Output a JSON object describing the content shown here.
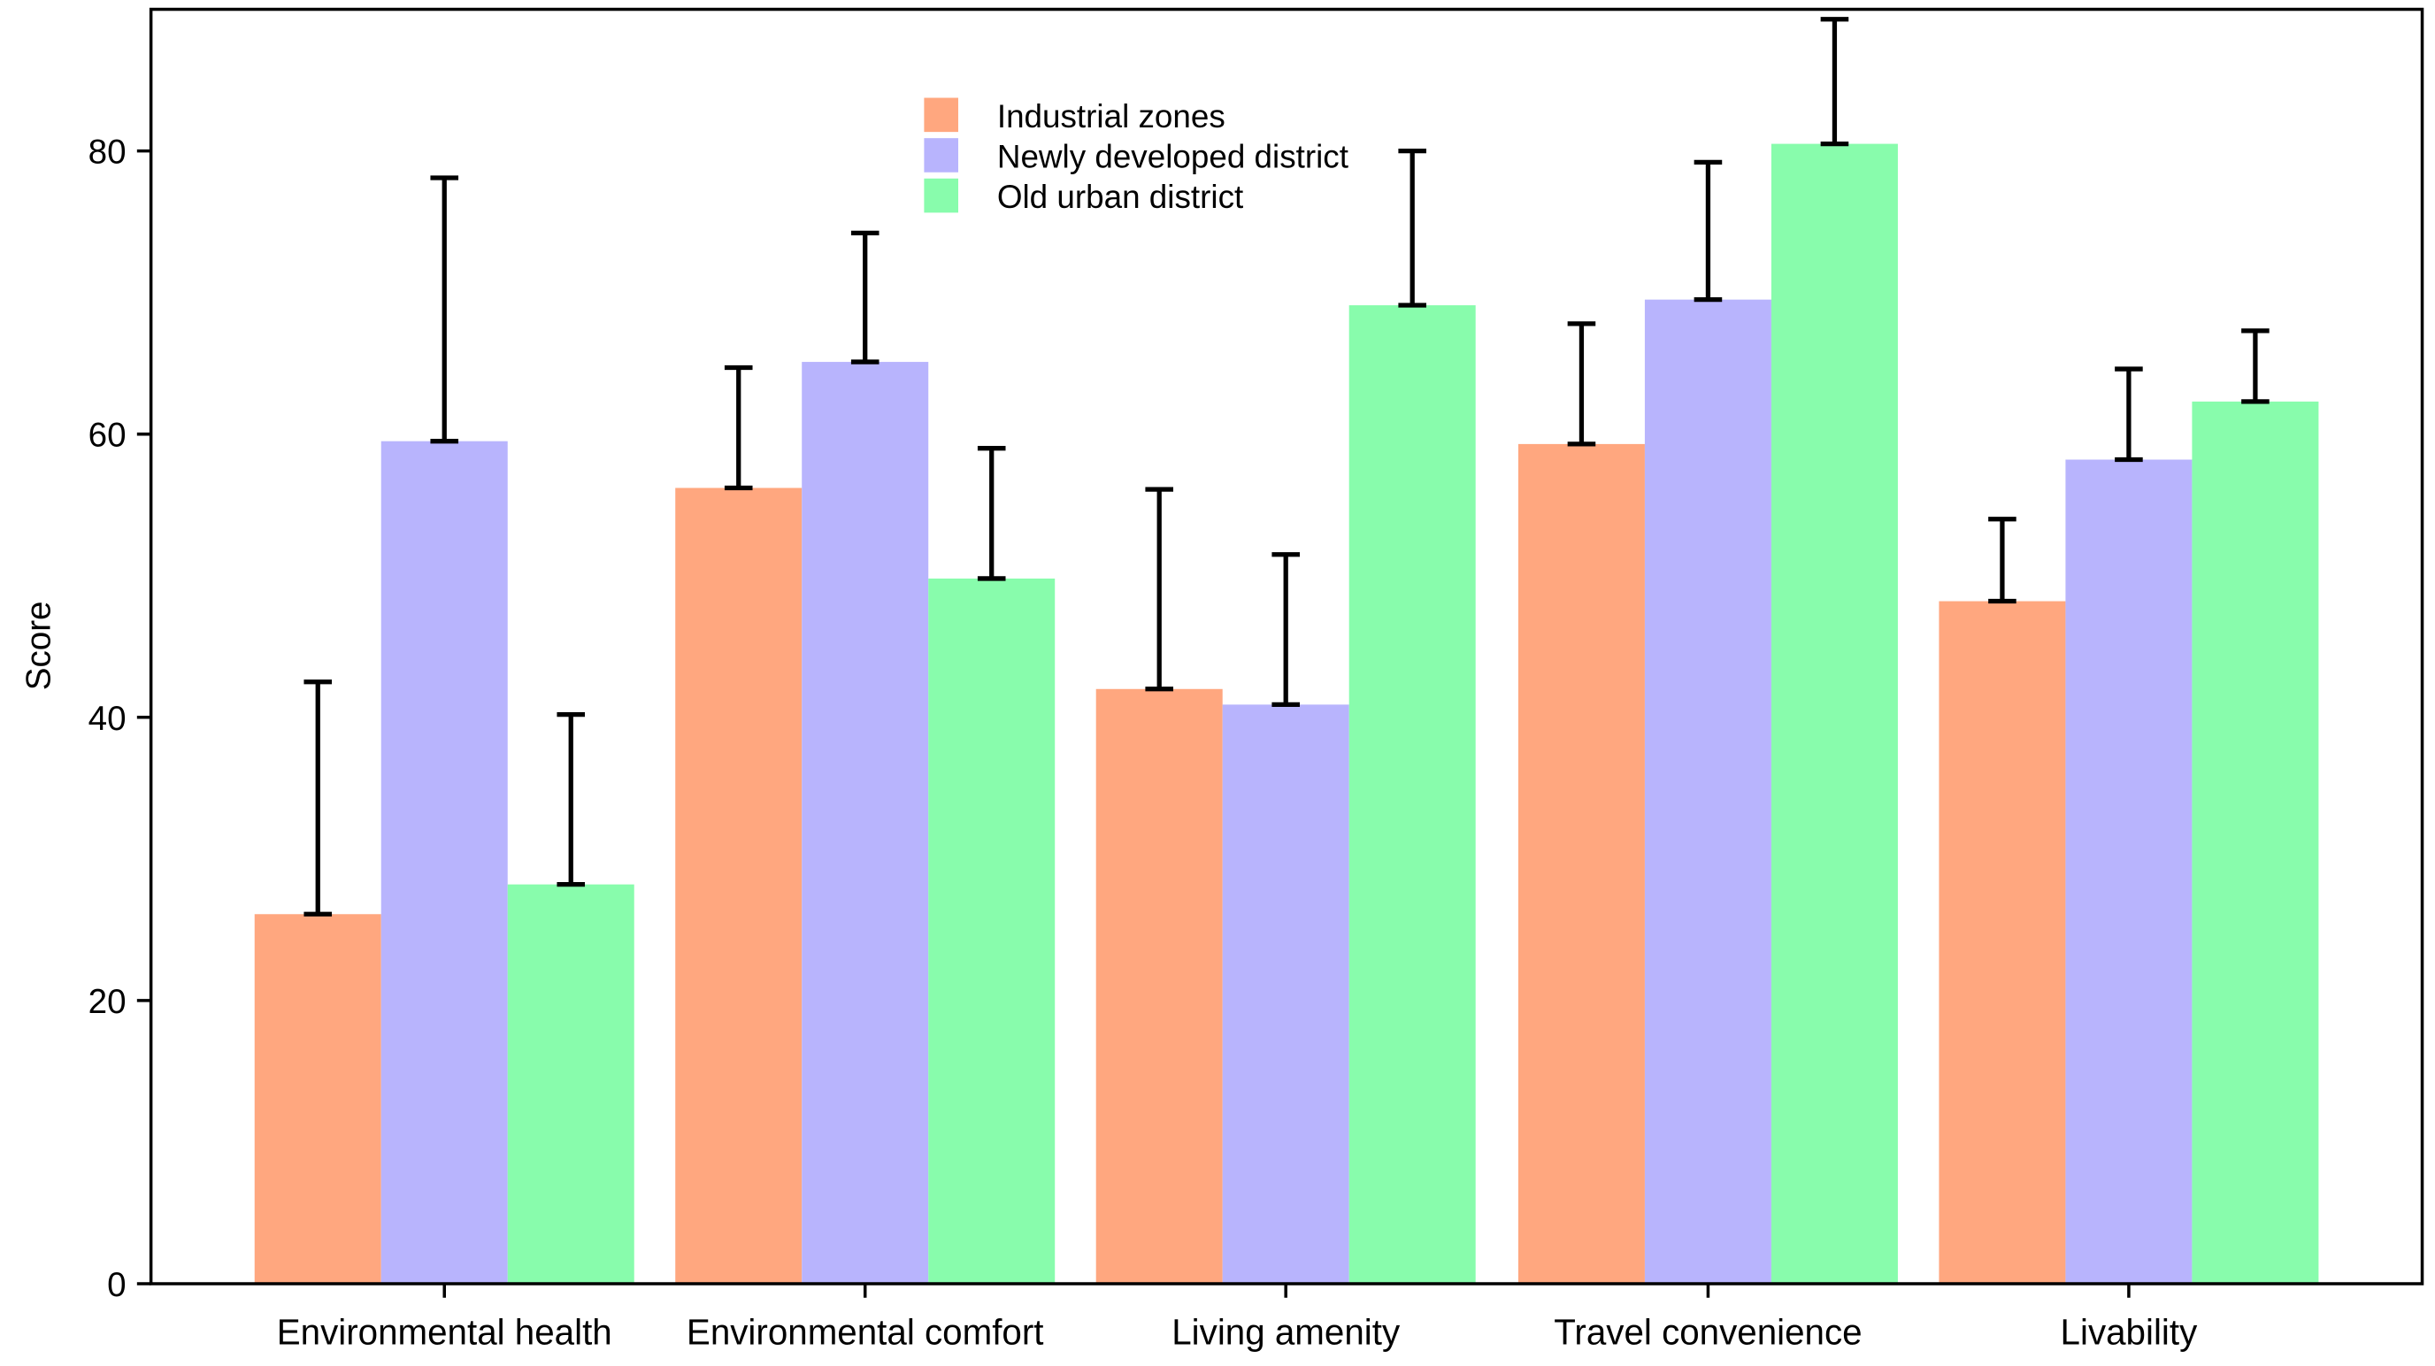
{
  "chart_data": {
    "type": "bar",
    "title": "",
    "xlabel": "",
    "ylabel": "Score",
    "ylim": [
      0,
      90
    ],
    "yticks": [
      0,
      20,
      40,
      60,
      80
    ],
    "grid": false,
    "legend_position": "top-center",
    "categories": [
      "Environmental health",
      "Environmental comfort",
      "Living amenity",
      "Travel convenience",
      "Livability"
    ],
    "series": [
      {
        "name": "Industrial zones",
        "color": "#FFA77F",
        "values": [
          26.1,
          56.2,
          42.0,
          59.3,
          48.2
        ],
        "error_upper": [
          42.5,
          64.7,
          56.1,
          67.8,
          54.0
        ]
      },
      {
        "name": "Newly developed district",
        "color": "#B8B4FD",
        "values": [
          59.5,
          65.1,
          40.9,
          69.5,
          58.2
        ],
        "error_upper": [
          78.1,
          74.2,
          51.5,
          79.2,
          64.6
        ]
      },
      {
        "name": "Old urban district",
        "color": "#88FCAC",
        "values": [
          28.2,
          49.8,
          69.1,
          80.5,
          62.3
        ],
        "error_upper": [
          40.2,
          59.0,
          80.0,
          89.3,
          67.3
        ]
      }
    ]
  }
}
